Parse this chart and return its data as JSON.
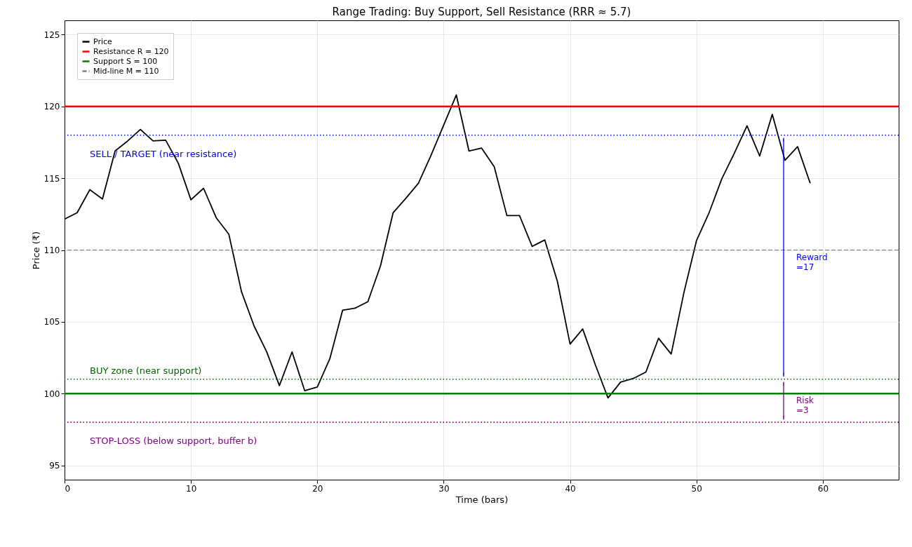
{
  "chart_data": {
    "type": "line",
    "title": "Range Trading: Buy Support, Sell Resistance (RRR ≈ 5.7)",
    "xlabel": "Time (bars)",
    "ylabel": "Price (₹)",
    "x": [
      0,
      1,
      2,
      3,
      4,
      5,
      6,
      7,
      8,
      9,
      10,
      11,
      12,
      13,
      14,
      15,
      16,
      17,
      18,
      19,
      20,
      21,
      22,
      23,
      24,
      25,
      26,
      27,
      28,
      29,
      30,
      31,
      32,
      33,
      34,
      35,
      36,
      37,
      38,
      39,
      40,
      41,
      42,
      43,
      44,
      45,
      46,
      47,
      48,
      49,
      50,
      51,
      52,
      53,
      54,
      55,
      56,
      57,
      58,
      59
    ],
    "series": [
      {
        "name": "Price",
        "color": "#000000",
        "values": [
          112.15,
          112.6,
          114.2,
          113.55,
          116.9,
          117.6,
          118.4,
          117.6,
          117.65,
          116.05,
          113.5,
          114.3,
          112.25,
          111.1,
          107.1,
          104.7,
          102.9,
          100.55,
          102.9,
          100.2,
          100.45,
          102.45,
          105.8,
          105.95,
          106.4,
          108.9,
          112.6,
          113.6,
          114.65,
          116.6,
          118.7,
          120.8,
          116.9,
          117.1,
          115.8,
          112.4,
          112.4,
          110.25,
          110.7,
          107.8,
          103.45,
          104.5,
          102.0,
          99.7,
          100.8,
          101.05,
          101.5,
          103.85,
          102.75,
          107.0,
          110.65,
          112.6,
          114.95,
          116.75,
          118.65,
          116.55,
          119.45,
          116.25,
          117.2,
          114.65
        ]
      }
    ],
    "ref_lines": [
      {
        "axis": "y",
        "value": 120,
        "label": "Resistance R = 120",
        "color": "#ff0000",
        "line_style": "solid"
      },
      {
        "axis": "y",
        "value": 100,
        "label": "Support S = 100",
        "color": "#008000",
        "line_style": "solid"
      },
      {
        "axis": "y",
        "value": 110,
        "label": "Mid-line M = 110",
        "color": "#808080",
        "line_style": "dashed"
      },
      {
        "axis": "y",
        "value": 118,
        "color": "#0000ff",
        "line_style": "dotted"
      },
      {
        "axis": "y",
        "value": 101,
        "color": "#006400",
        "line_style": "dotted"
      },
      {
        "axis": "y",
        "value": 98,
        "color": "#800080",
        "line_style": "dotted"
      }
    ],
    "annotations": [
      "SELL / TARGET (near resistance)",
      "BUY zone (near support)",
      "STOP-LOSS (below support, buffer b)",
      "Reward\n=17",
      "Risk\n=3"
    ],
    "xlim": [
      0,
      66
    ],
    "ylim": [
      94,
      126
    ],
    "xticks": [
      0,
      10,
      20,
      30,
      40,
      50,
      60
    ],
    "yticks": [
      95,
      100,
      105,
      110,
      115,
      120,
      125
    ],
    "grid": true,
    "legend": "top left",
    "marker": "none",
    "line_style": "solid"
  }
}
